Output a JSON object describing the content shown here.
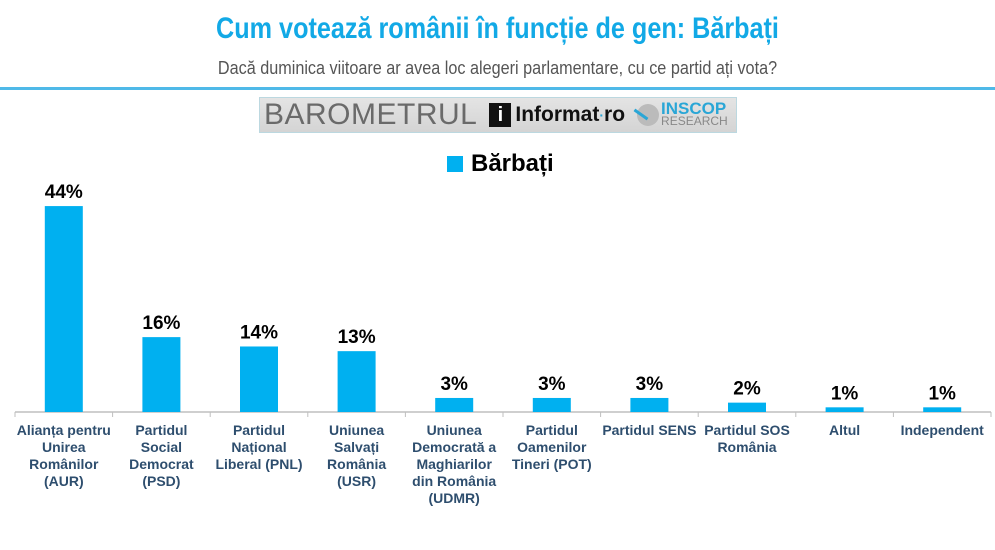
{
  "header": {
    "title": "Cum votează românii în funcție de gen: Bărbați",
    "subtitle": "Dacă duminica viitoare ar avea loc alegeri parlamentare, cu ce partid ați vota?"
  },
  "logo": {
    "barometrul": "BAROMETRUL",
    "informat": "Informat",
    "informat_dot": "·",
    "informat_ro": "ro",
    "inscop": "INSCOP",
    "research": "RESEARCH"
  },
  "chart_data": {
    "type": "bar",
    "categories": [
      "Alianța pentru Unirea Românilor (AUR)",
      "Partidul Social Democrat (PSD)",
      "Partidul Național Liberal (PNL)",
      "Uniunea Salvați România (USR)",
      "Uniunea Democrată a Maghiarilor din România (UDMR)",
      "Partidul Oamenilor Tineri (POT)",
      "Partidul SENS",
      "Partidul SOS România",
      "Altul",
      "Independent"
    ],
    "series": [
      {
        "name": "Bărbați",
        "values": [
          44,
          16,
          14,
          13,
          3,
          3,
          3,
          2,
          1,
          1
        ],
        "color": "#00b0f0"
      }
    ],
    "data_labels": [
      "44%",
      "16%",
      "14%",
      "13%",
      "3%",
      "3%",
      "3%",
      "2%",
      "1%",
      "1%"
    ],
    "ylim": [
      0,
      45
    ],
    "grid": false,
    "legend": "top-center"
  }
}
